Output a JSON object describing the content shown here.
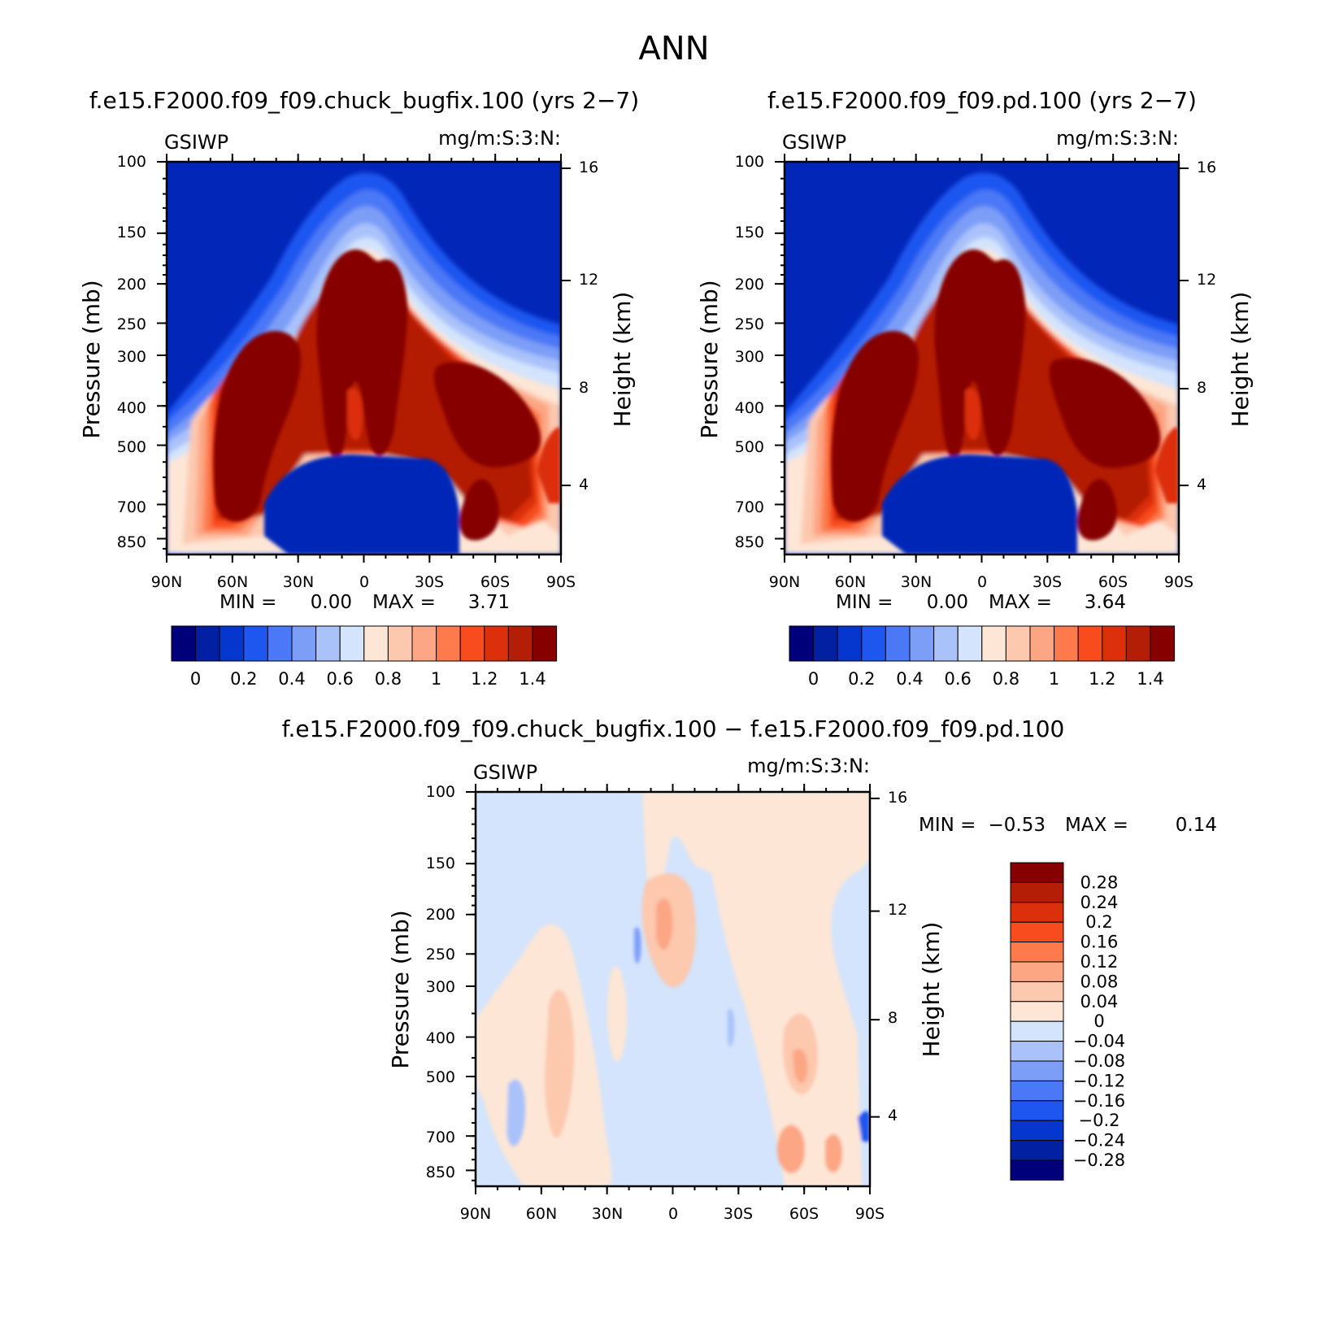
{
  "page": {
    "season": "ANN",
    "variable": "GSIWP",
    "units": "mg/m:S:3:N:",
    "diff_title": "f.e15.F2000.f09_f09.chuck_bugfix.100 − f.e15.F2000.f09_f09.pd.100"
  },
  "chart_data": [
    {
      "type": "heatmap",
      "title": "f.e15.F2000.f09_f09.chuck_bugfix.100 (yrs 2−7)",
      "left_label": "GSIWP",
      "right_label": "mg/m:S:3:N:",
      "ylabel": "Pressure (mb)",
      "ylabel_right": "Height (km)",
      "xlabel": "",
      "x_ticks": [
        "90N",
        "60N",
        "30N",
        "0",
        "30S",
        "60S",
        "90S"
      ],
      "y_ticks": [
        "100",
        "150",
        "200",
        "250",
        "300",
        "400",
        "500",
        "700",
        "850"
      ],
      "y2_ticks": [
        "16",
        "12",
        "8",
        "4"
      ],
      "min_label": "MIN =",
      "max_label": "MAX =",
      "min": "0.00",
      "max": "3.71",
      "colorbar": {
        "orientation": "horizontal",
        "tick_labels": [
          "0",
          "0.2",
          "0.4",
          "0.6",
          "0.8",
          "1",
          "1.2",
          "1.4"
        ],
        "colors": [
          "#00007a",
          "#0220a2",
          "#0537cf",
          "#1e56f0",
          "#4b78f6",
          "#7d9ef7",
          "#aac2fa",
          "#d3e4fc",
          "#fde6d6",
          "#fcc8ae",
          "#fca684",
          "#fc7a4c",
          "#f84c1f",
          "#dc2f0b",
          "#b41d06",
          "#860000"
        ]
      }
    },
    {
      "type": "heatmap",
      "title": "f.e15.F2000.f09_f09.pd.100 (yrs 2−7)",
      "left_label": "GSIWP",
      "right_label": "mg/m:S:3:N:",
      "ylabel": "Pressure (mb)",
      "ylabel_right": "Height (km)",
      "xlabel": "",
      "x_ticks": [
        "90N",
        "60N",
        "30N",
        "0",
        "30S",
        "60S",
        "90S"
      ],
      "y_ticks": [
        "100",
        "150",
        "200",
        "250",
        "300",
        "400",
        "500",
        "700",
        "850"
      ],
      "y2_ticks": [
        "16",
        "12",
        "8",
        "4"
      ],
      "min_label": "MIN =",
      "max_label": "MAX =",
      "min": "0.00",
      "max": "3.64",
      "colorbar": {
        "orientation": "horizontal",
        "tick_labels": [
          "0",
          "0.2",
          "0.4",
          "0.6",
          "0.8",
          "1",
          "1.2",
          "1.4"
        ],
        "colors": [
          "#00007a",
          "#0220a2",
          "#0537cf",
          "#1e56f0",
          "#4b78f6",
          "#7d9ef7",
          "#aac2fa",
          "#d3e4fc",
          "#fde6d6",
          "#fcc8ae",
          "#fca684",
          "#fc7a4c",
          "#f84c1f",
          "#dc2f0b",
          "#b41d06",
          "#860000"
        ]
      }
    },
    {
      "type": "heatmap",
      "title": "f.e15.F2000.f09_f09.chuck_bugfix.100 − f.e15.F2000.f09_f09.pd.100",
      "left_label": "GSIWP",
      "right_label": "mg/m:S:3:N:",
      "ylabel": "Pressure (mb)",
      "ylabel_right": "Height (km)",
      "xlabel": "",
      "x_ticks": [
        "90N",
        "60N",
        "30N",
        "0",
        "30S",
        "60S",
        "90S"
      ],
      "y_ticks": [
        "100",
        "150",
        "200",
        "250",
        "300",
        "400",
        "500",
        "700",
        "850"
      ],
      "y2_ticks": [
        "16",
        "12",
        "8",
        "4"
      ],
      "min_label": "MIN =",
      "max_label": "MAX =",
      "min": "−0.53",
      "max": "0.14",
      "colorbar": {
        "orientation": "vertical",
        "tick_labels": [
          "0.28",
          "0.24",
          "0.2",
          "0.16",
          "0.12",
          "0.08",
          "0.04",
          "0",
          "−0.04",
          "−0.08",
          "−0.12",
          "−0.16",
          "−0.2",
          "−0.24",
          "−0.28"
        ],
        "colors": [
          "#860000",
          "#b41d06",
          "#dc2f0b",
          "#f84c1f",
          "#fc7a4c",
          "#fca684",
          "#fcc8ae",
          "#fde6d6",
          "#d3e4fc",
          "#aac2fa",
          "#7d9ef7",
          "#4b78f6",
          "#1e56f0",
          "#0537cf",
          "#0220a2",
          "#00007a"
        ]
      }
    }
  ]
}
